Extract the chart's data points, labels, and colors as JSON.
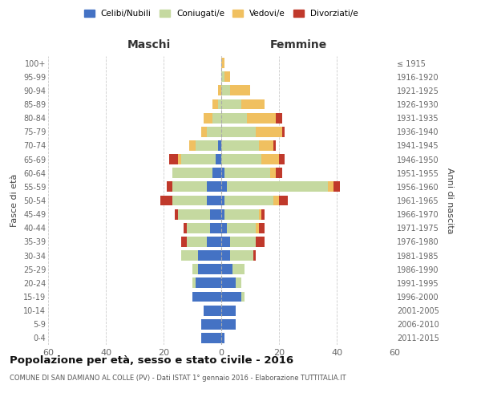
{
  "age_groups": [
    "0-4",
    "5-9",
    "10-14",
    "15-19",
    "20-24",
    "25-29",
    "30-34",
    "35-39",
    "40-44",
    "45-49",
    "50-54",
    "55-59",
    "60-64",
    "65-69",
    "70-74",
    "75-79",
    "80-84",
    "85-89",
    "90-94",
    "95-99",
    "100+"
  ],
  "birth_years": [
    "2011-2015",
    "2006-2010",
    "2001-2005",
    "1996-2000",
    "1991-1995",
    "1986-1990",
    "1981-1985",
    "1976-1980",
    "1971-1975",
    "1966-1970",
    "1961-1965",
    "1956-1960",
    "1951-1955",
    "1946-1950",
    "1941-1945",
    "1936-1940",
    "1931-1935",
    "1926-1930",
    "1921-1925",
    "1916-1920",
    "≤ 1915"
  ],
  "colors": {
    "celibi": "#4472c4",
    "coniugati": "#c5d9a0",
    "vedovi": "#f0c060",
    "divorziati": "#c0392b"
  },
  "maschi": {
    "celibi": [
      7,
      7,
      6,
      10,
      9,
      8,
      8,
      5,
      4,
      4,
      5,
      5,
      3,
      2,
      1,
      0,
      0,
      0,
      0,
      0,
      0
    ],
    "coniugati": [
      0,
      0,
      0,
      0,
      1,
      2,
      6,
      7,
      8,
      11,
      12,
      12,
      14,
      12,
      8,
      5,
      3,
      1,
      0,
      0,
      0
    ],
    "vedovi": [
      0,
      0,
      0,
      0,
      0,
      0,
      0,
      0,
      0,
      0,
      0,
      0,
      0,
      1,
      2,
      2,
      3,
      2,
      1,
      0,
      0
    ],
    "divorziati": [
      0,
      0,
      0,
      0,
      0,
      0,
      0,
      2,
      1,
      1,
      4,
      2,
      0,
      3,
      0,
      0,
      0,
      0,
      0,
      0,
      0
    ]
  },
  "femmine": {
    "celibi": [
      1,
      5,
      5,
      7,
      5,
      4,
      3,
      3,
      2,
      1,
      1,
      2,
      1,
      0,
      0,
      0,
      0,
      0,
      0,
      0,
      0
    ],
    "coniugati": [
      0,
      0,
      0,
      1,
      2,
      4,
      8,
      9,
      10,
      12,
      17,
      35,
      16,
      14,
      13,
      12,
      9,
      7,
      3,
      1,
      0
    ],
    "vedovi": [
      0,
      0,
      0,
      0,
      0,
      0,
      0,
      0,
      1,
      1,
      2,
      2,
      2,
      6,
      5,
      9,
      10,
      8,
      7,
      2,
      1
    ],
    "divorziati": [
      0,
      0,
      0,
      0,
      0,
      0,
      1,
      3,
      2,
      1,
      3,
      2,
      2,
      2,
      1,
      1,
      2,
      0,
      0,
      0,
      0
    ]
  },
  "xlim": 60,
  "title": "Popolazione per età, sesso e stato civile - 2016",
  "subtitle": "COMUNE DI SAN DAMIANO AL COLLE (PV) - Dati ISTAT 1° gennaio 2016 - Elaborazione TUTTITALIA.IT",
  "ylabel_left": "Fasce di età",
  "ylabel_right": "Anni di nascita",
  "xlabel_left": "Maschi",
  "xlabel_right": "Femmine",
  "legend_labels": [
    "Celibi/Nubili",
    "Coniugati/e",
    "Vedovi/e",
    "Divorziati/e"
  ],
  "background_color": "#ffffff",
  "grid_color": "#cccccc"
}
